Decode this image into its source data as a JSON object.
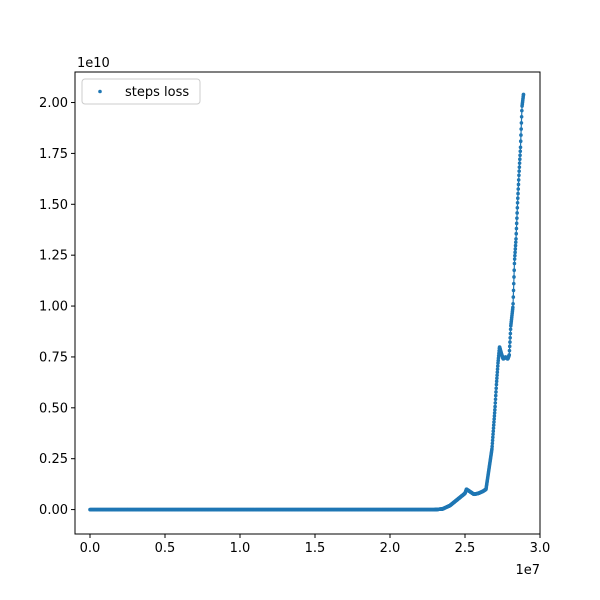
{
  "chart_data": {
    "type": "scatter",
    "title": "",
    "xlabel": "",
    "ylabel": "",
    "x_offset_label": "1e7",
    "y_offset_label": "1e10",
    "xlim": [
      -1.0,
      30.0
    ],
    "ylim": [
      -0.12,
      2.15
    ],
    "x_ticks": [
      0.0,
      0.5,
      1.0,
      1.5,
      2.0,
      2.5,
      3.0
    ],
    "x_tick_labels": [
      "0.0",
      "0.5",
      "1.0",
      "1.5",
      "2.0",
      "2.5",
      "3.0"
    ],
    "y_ticks": [
      0.0,
      0.25,
      0.5,
      0.75,
      1.0,
      1.25,
      1.5,
      1.75,
      2.0
    ],
    "y_tick_labels": [
      "0.00",
      "0.25",
      "0.50",
      "0.75",
      "1.00",
      "1.25",
      "1.50",
      "1.75",
      "2.00"
    ],
    "grid": false,
    "legend_position": "upper-left",
    "color": "#1f77b4",
    "series": [
      {
        "name": "steps loss",
        "x": [
          0.0,
          23.0,
          23.5,
          24.0,
          24.5,
          25.0,
          25.1,
          25.3,
          25.6,
          25.9,
          26.2,
          26.4,
          26.6,
          26.8,
          27.0,
          27.1,
          27.2,
          27.3,
          27.45,
          27.55,
          27.7,
          27.85,
          27.95,
          28.05,
          28.2,
          28.3,
          28.4,
          28.5,
          28.6,
          28.7,
          28.8,
          28.9
        ],
        "y": [
          0.0,
          0.0,
          0.003,
          0.02,
          0.05,
          0.08,
          0.1,
          0.09,
          0.075,
          0.08,
          0.09,
          0.1,
          0.2,
          0.3,
          0.5,
          0.62,
          0.72,
          0.8,
          0.76,
          0.74,
          0.75,
          0.74,
          0.76,
          0.9,
          1.0,
          1.22,
          1.33,
          1.5,
          1.65,
          1.78,
          1.98,
          2.04
        ]
      }
    ]
  }
}
